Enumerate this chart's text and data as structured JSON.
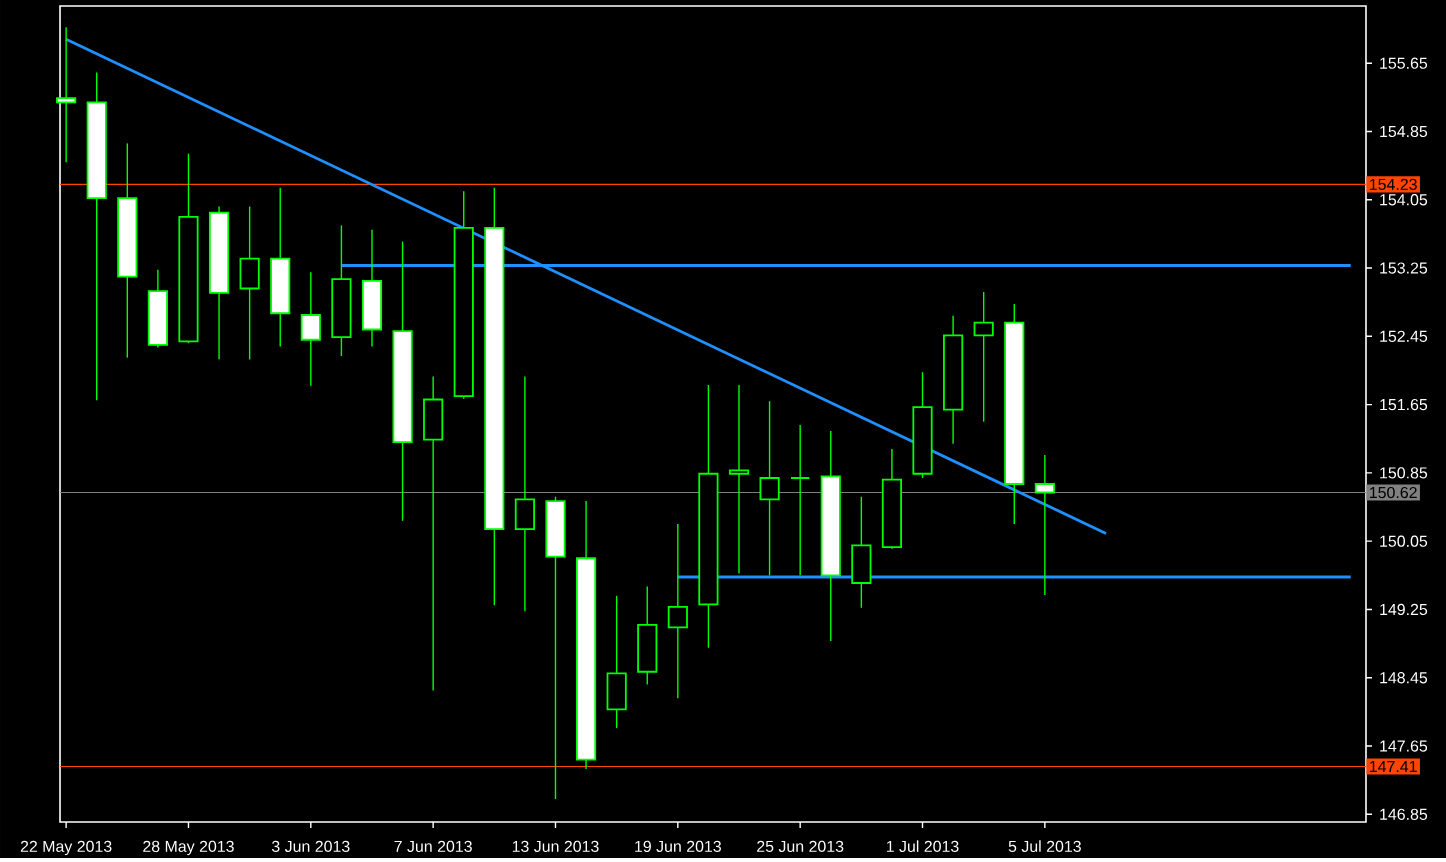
{
  "chart_data": {
    "type": "candlestick",
    "categories": [
      "22 May 2013",
      null,
      null,
      null,
      "28 May 2013",
      null,
      null,
      null,
      "3 Jun 2013",
      null,
      null,
      null,
      "7 Jun 2013",
      null,
      null,
      null,
      "13 Jun 2013",
      null,
      null,
      null,
      "19 Jun 2013",
      null,
      null,
      null,
      "25 Jun 2013",
      null,
      null,
      null,
      "1 Jul 2013",
      null,
      null,
      null,
      "5 Jul 2013",
      null,
      null,
      null,
      null,
      null,
      null,
      null,
      null,
      null,
      null
    ],
    "ohlc": [
      [
        155.24,
        156.07,
        154.49,
        155.19
      ],
      [
        155.19,
        155.54,
        151.7,
        154.07
      ],
      [
        154.07,
        154.71,
        152.2,
        153.15
      ],
      [
        152.98,
        153.23,
        152.32,
        152.35
      ],
      [
        152.39,
        154.59,
        152.37,
        153.85
      ],
      [
        153.9,
        153.97,
        152.18,
        152.96
      ],
      [
        153.01,
        153.97,
        152.18,
        153.36
      ],
      [
        153.36,
        154.19,
        152.33,
        152.72
      ],
      [
        152.7,
        153.2,
        151.87,
        152.41
      ],
      [
        152.44,
        153.75,
        152.22,
        153.12
      ],
      [
        153.1,
        153.7,
        152.33,
        152.53
      ],
      [
        152.51,
        153.56,
        150.29,
        151.21
      ],
      [
        151.24,
        151.98,
        148.3,
        151.71
      ],
      [
        151.75,
        154.15,
        151.72,
        153.72
      ],
      [
        153.72,
        154.19,
        149.3,
        150.19
      ],
      [
        150.19,
        151.98,
        149.23,
        150.54
      ],
      [
        150.52,
        150.57,
        147.03,
        149.87
      ],
      [
        149.85,
        150.52,
        147.38,
        147.49
      ],
      [
        148.08,
        149.41,
        147.86,
        148.5
      ],
      [
        148.52,
        149.52,
        148.37,
        149.07
      ],
      [
        149.04,
        150.25,
        148.21,
        149.28
      ],
      [
        149.31,
        151.88,
        148.8,
        150.84
      ],
      [
        150.84,
        151.88,
        149.67,
        150.88
      ],
      [
        150.54,
        151.69,
        149.65,
        150.79
      ],
      [
        150.79,
        151.41,
        149.65,
        150.79
      ],
      [
        150.81,
        151.34,
        148.88,
        149.65
      ],
      [
        149.56,
        150.57,
        149.27,
        150.0
      ],
      [
        149.98,
        151.13,
        149.96,
        150.77
      ],
      [
        150.84,
        152.03,
        150.79,
        151.62
      ],
      [
        151.59,
        152.69,
        151.19,
        152.46
      ],
      [
        152.46,
        152.97,
        151.45,
        152.61
      ],
      [
        152.61,
        152.83,
        150.25,
        150.72
      ],
      [
        150.72,
        151.06,
        149.42,
        150.62
      ],
      null,
      null,
      null,
      null,
      null,
      null,
      null,
      null,
      null,
      null
    ],
    "series": [
      {
        "type": "line",
        "color": "#1e90ff",
        "values": [
          155.93,
          null,
          null,
          null,
          null,
          null,
          null,
          null,
          null,
          null,
          null,
          null,
          null,
          null,
          null,
          null,
          null,
          null,
          null,
          null,
          null,
          null,
          null,
          null,
          null,
          null,
          null,
          null,
          null,
          null,
          null,
          null,
          null,
          null,
          150.14,
          null,
          null,
          null,
          null,
          null,
          null,
          null,
          null
        ]
      },
      {
        "type": "line",
        "color": "#1e90ff",
        "values": [
          null,
          null,
          null,
          null,
          null,
          null,
          null,
          null,
          null,
          153.28,
          null,
          null,
          null,
          null,
          null,
          null,
          null,
          null,
          null,
          null,
          null,
          null,
          null,
          null,
          null,
          null,
          null,
          null,
          null,
          null,
          null,
          null,
          null,
          null,
          null,
          null,
          null,
          null,
          null,
          null,
          null,
          null,
          153.28
        ]
      },
      {
        "type": "line",
        "color": "#1e90ff",
        "values": [
          null,
          null,
          null,
          null,
          null,
          null,
          null,
          null,
          null,
          null,
          null,
          null,
          null,
          null,
          null,
          null,
          null,
          null,
          null,
          null,
          149.63,
          null,
          null,
          null,
          null,
          null,
          null,
          null,
          null,
          null,
          null,
          null,
          null,
          null,
          null,
          null,
          null,
          null,
          null,
          null,
          null,
          null,
          149.63
        ]
      }
    ],
    "ylim": [
      146.76,
      156.32
    ],
    "yticks": [
      146.85,
      147.65,
      148.45,
      149.25,
      150.05,
      150.85,
      151.65,
      152.45,
      153.25,
      154.05,
      154.85,
      155.65
    ],
    "ref_lines": [
      {
        "axis": "y",
        "value": 154.23,
        "label": "154.23",
        "color": "#ff4500"
      },
      {
        "axis": "y",
        "value": 150.62,
        "label": "150.62",
        "color": "#808080"
      },
      {
        "axis": "y",
        "value": 147.41,
        "label": "147.41",
        "color": "#ff4500"
      }
    ]
  }
}
